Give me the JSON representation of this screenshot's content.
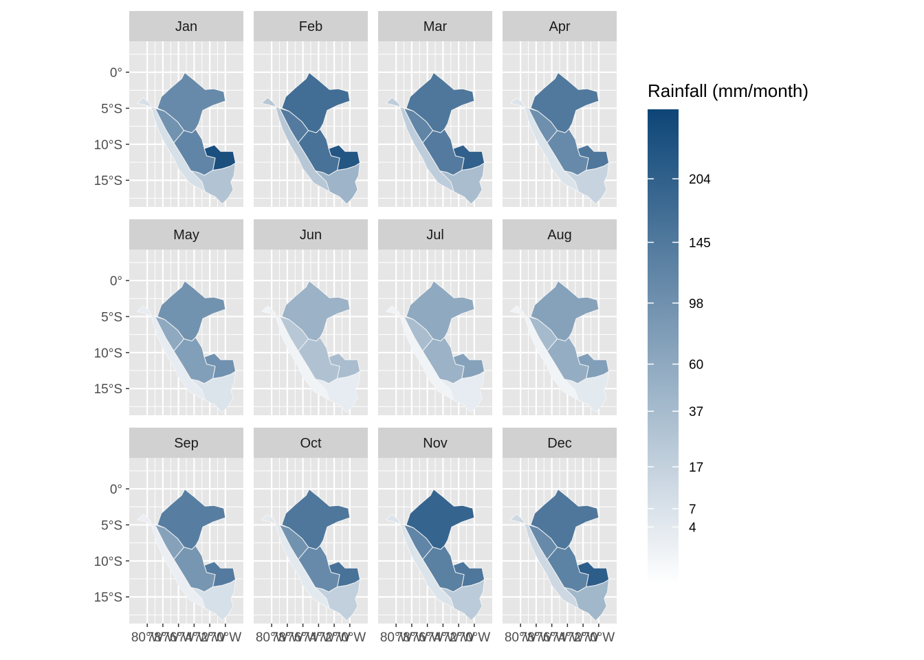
{
  "chart_data": {
    "type": "choropleth-facets",
    "map_region": "Peru departments",
    "panels": [
      {
        "month": "Jan",
        "north": 110,
        "ne": 95,
        "center": 120,
        "se": 250,
        "south": 28,
        "coast": 8
      },
      {
        "month": "Feb",
        "north": 170,
        "ne": 140,
        "center": 160,
        "se": 230,
        "south": 45,
        "coast": 25
      },
      {
        "month": "Mar",
        "north": 150,
        "ne": 120,
        "center": 140,
        "se": 205,
        "south": 35,
        "coast": 20
      },
      {
        "month": "Apr",
        "north": 145,
        "ne": 100,
        "center": 110,
        "se": 150,
        "south": 15,
        "coast": 6
      },
      {
        "month": "May",
        "north": 95,
        "ne": 60,
        "center": 75,
        "se": 98,
        "south": 6,
        "coast": 3
      },
      {
        "month": "Jun",
        "north": 48,
        "ne": 25,
        "center": 30,
        "se": 35,
        "south": 3,
        "coast": 1
      },
      {
        "month": "Jul",
        "north": 60,
        "ne": 35,
        "center": 48,
        "se": 70,
        "south": 3,
        "coast": 1
      },
      {
        "month": "Aug",
        "north": 70,
        "ne": 38,
        "center": 55,
        "se": 75,
        "south": 4,
        "coast": 1
      },
      {
        "month": "Sep",
        "north": 135,
        "ne": 70,
        "center": 90,
        "se": 140,
        "south": 8,
        "coast": 2
      },
      {
        "month": "Oct",
        "north": 150,
        "ne": 95,
        "center": 110,
        "se": 160,
        "south": 18,
        "coast": 4
      },
      {
        "month": "Nov",
        "north": 195,
        "ne": 120,
        "center": 130,
        "se": 150,
        "south": 22,
        "coast": 6
      },
      {
        "month": "Dec",
        "north": 150,
        "ne": 110,
        "center": 125,
        "se": 210,
        "south": 42,
        "coast": 12
      }
    ],
    "y_ticks": [
      "0°",
      "5°S",
      "10°S",
      "15°S"
    ],
    "y_tick_values": [
      0,
      -5,
      -10,
      -15
    ],
    "ylim": [
      -18.7,
      4.3
    ],
    "x_ticks": [
      "80°W",
      "78°W",
      "76°W",
      "74°W",
      "72°W",
      "70°W"
    ],
    "x_tick_values": [
      -80,
      -78,
      -76,
      -74,
      -72,
      -70
    ],
    "xlim": [
      -82.3,
      -67.7
    ],
    "legend": {
      "title": "Rainfall (mm/month)",
      "breaks": [
        204,
        145,
        98,
        60,
        37,
        17,
        7,
        4
      ],
      "range": [
        0,
        280
      ],
      "scale": "sqrt",
      "low_color": "#ffffff",
      "high_color": "#0d4577"
    },
    "colors": {
      "panel_background": "#e6e6e6",
      "strip_background": "#d1d1d1",
      "grid": "#ffffff",
      "region_border": "#f4f4f4"
    }
  }
}
